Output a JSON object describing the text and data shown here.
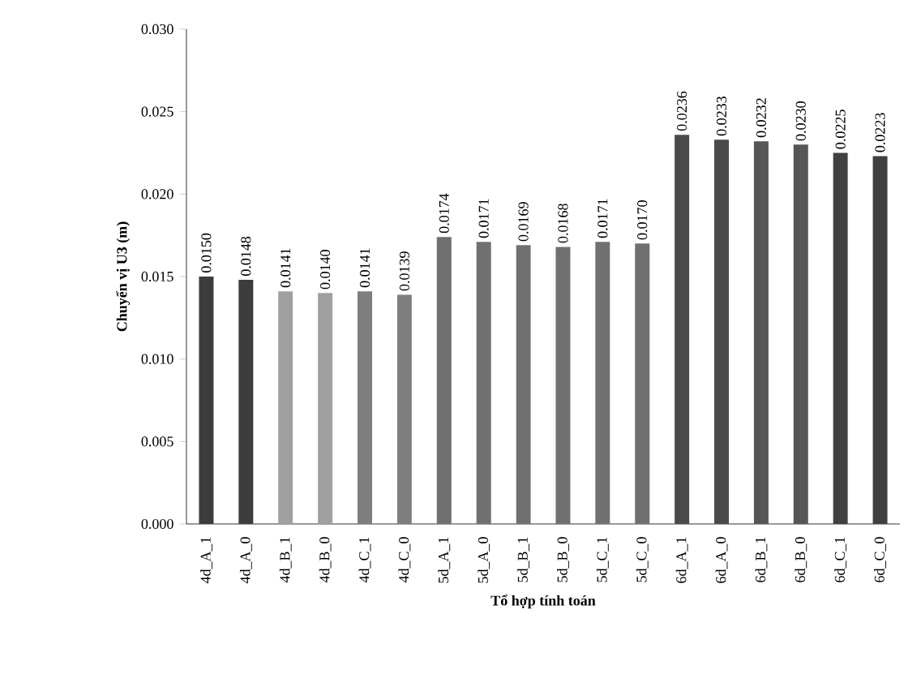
{
  "chart_data": {
    "type": "bar",
    "xlabel": "Tổ hợp tính toán",
    "ylabel": "Chuyển vị U3 (m)",
    "categories": [
      "4d_A_1",
      "4d_A_0",
      "4d_B_1",
      "4d_B_0",
      "4d_C_1",
      "4d_C_0",
      "5d_A_1",
      "5d_A_0",
      "5d_B_1",
      "5d_B_0",
      "5d_C_1",
      "5d_C_0",
      "6d_A_1",
      "6d_A_0",
      "6d_B_1",
      "6d_B_0",
      "6d_C_1",
      "6d_C_0"
    ],
    "values": [
      0.015,
      0.0148,
      0.0141,
      0.014,
      0.0141,
      0.0139,
      0.0174,
      0.0171,
      0.0169,
      0.0168,
      0.0171,
      0.017,
      0.0236,
      0.0233,
      0.0232,
      0.023,
      0.0225,
      0.0223
    ],
    "value_labels": [
      "0.0150",
      "0.0148",
      "0.0141",
      "0.0140",
      "0.0141",
      "0.0139",
      "0.0174",
      "0.0171",
      "0.0169",
      "0.0168",
      "0.0171",
      "0.0170",
      "0.0236",
      "0.0233",
      "0.0232",
      "0.0230",
      "0.0225",
      "0.0223"
    ],
    "colors": [
      "#3c3c3c",
      "#3c3c3c",
      "#a0a0a0",
      "#a0a0a0",
      "#7e7e7e",
      "#7e7e7e",
      "#707070",
      "#707070",
      "#707070",
      "#707070",
      "#707070",
      "#707070",
      "#4a4a4a",
      "#4a4a4a",
      "#565656",
      "#565656",
      "#404040",
      "#404040"
    ],
    "ylim": [
      0,
      0.03
    ],
    "yticks": [
      {
        "value": 0,
        "label": "0.000"
      },
      {
        "value": 0.005,
        "label": "0.005"
      },
      {
        "value": 0.01,
        "label": "0.010"
      },
      {
        "value": 0.015,
        "label": "0.015"
      },
      {
        "value": 0.02,
        "label": "0.020"
      },
      {
        "value": 0.025,
        "label": "0.025"
      },
      {
        "value": 0.03,
        "label": "0.030"
      }
    ],
    "grid": false
  }
}
